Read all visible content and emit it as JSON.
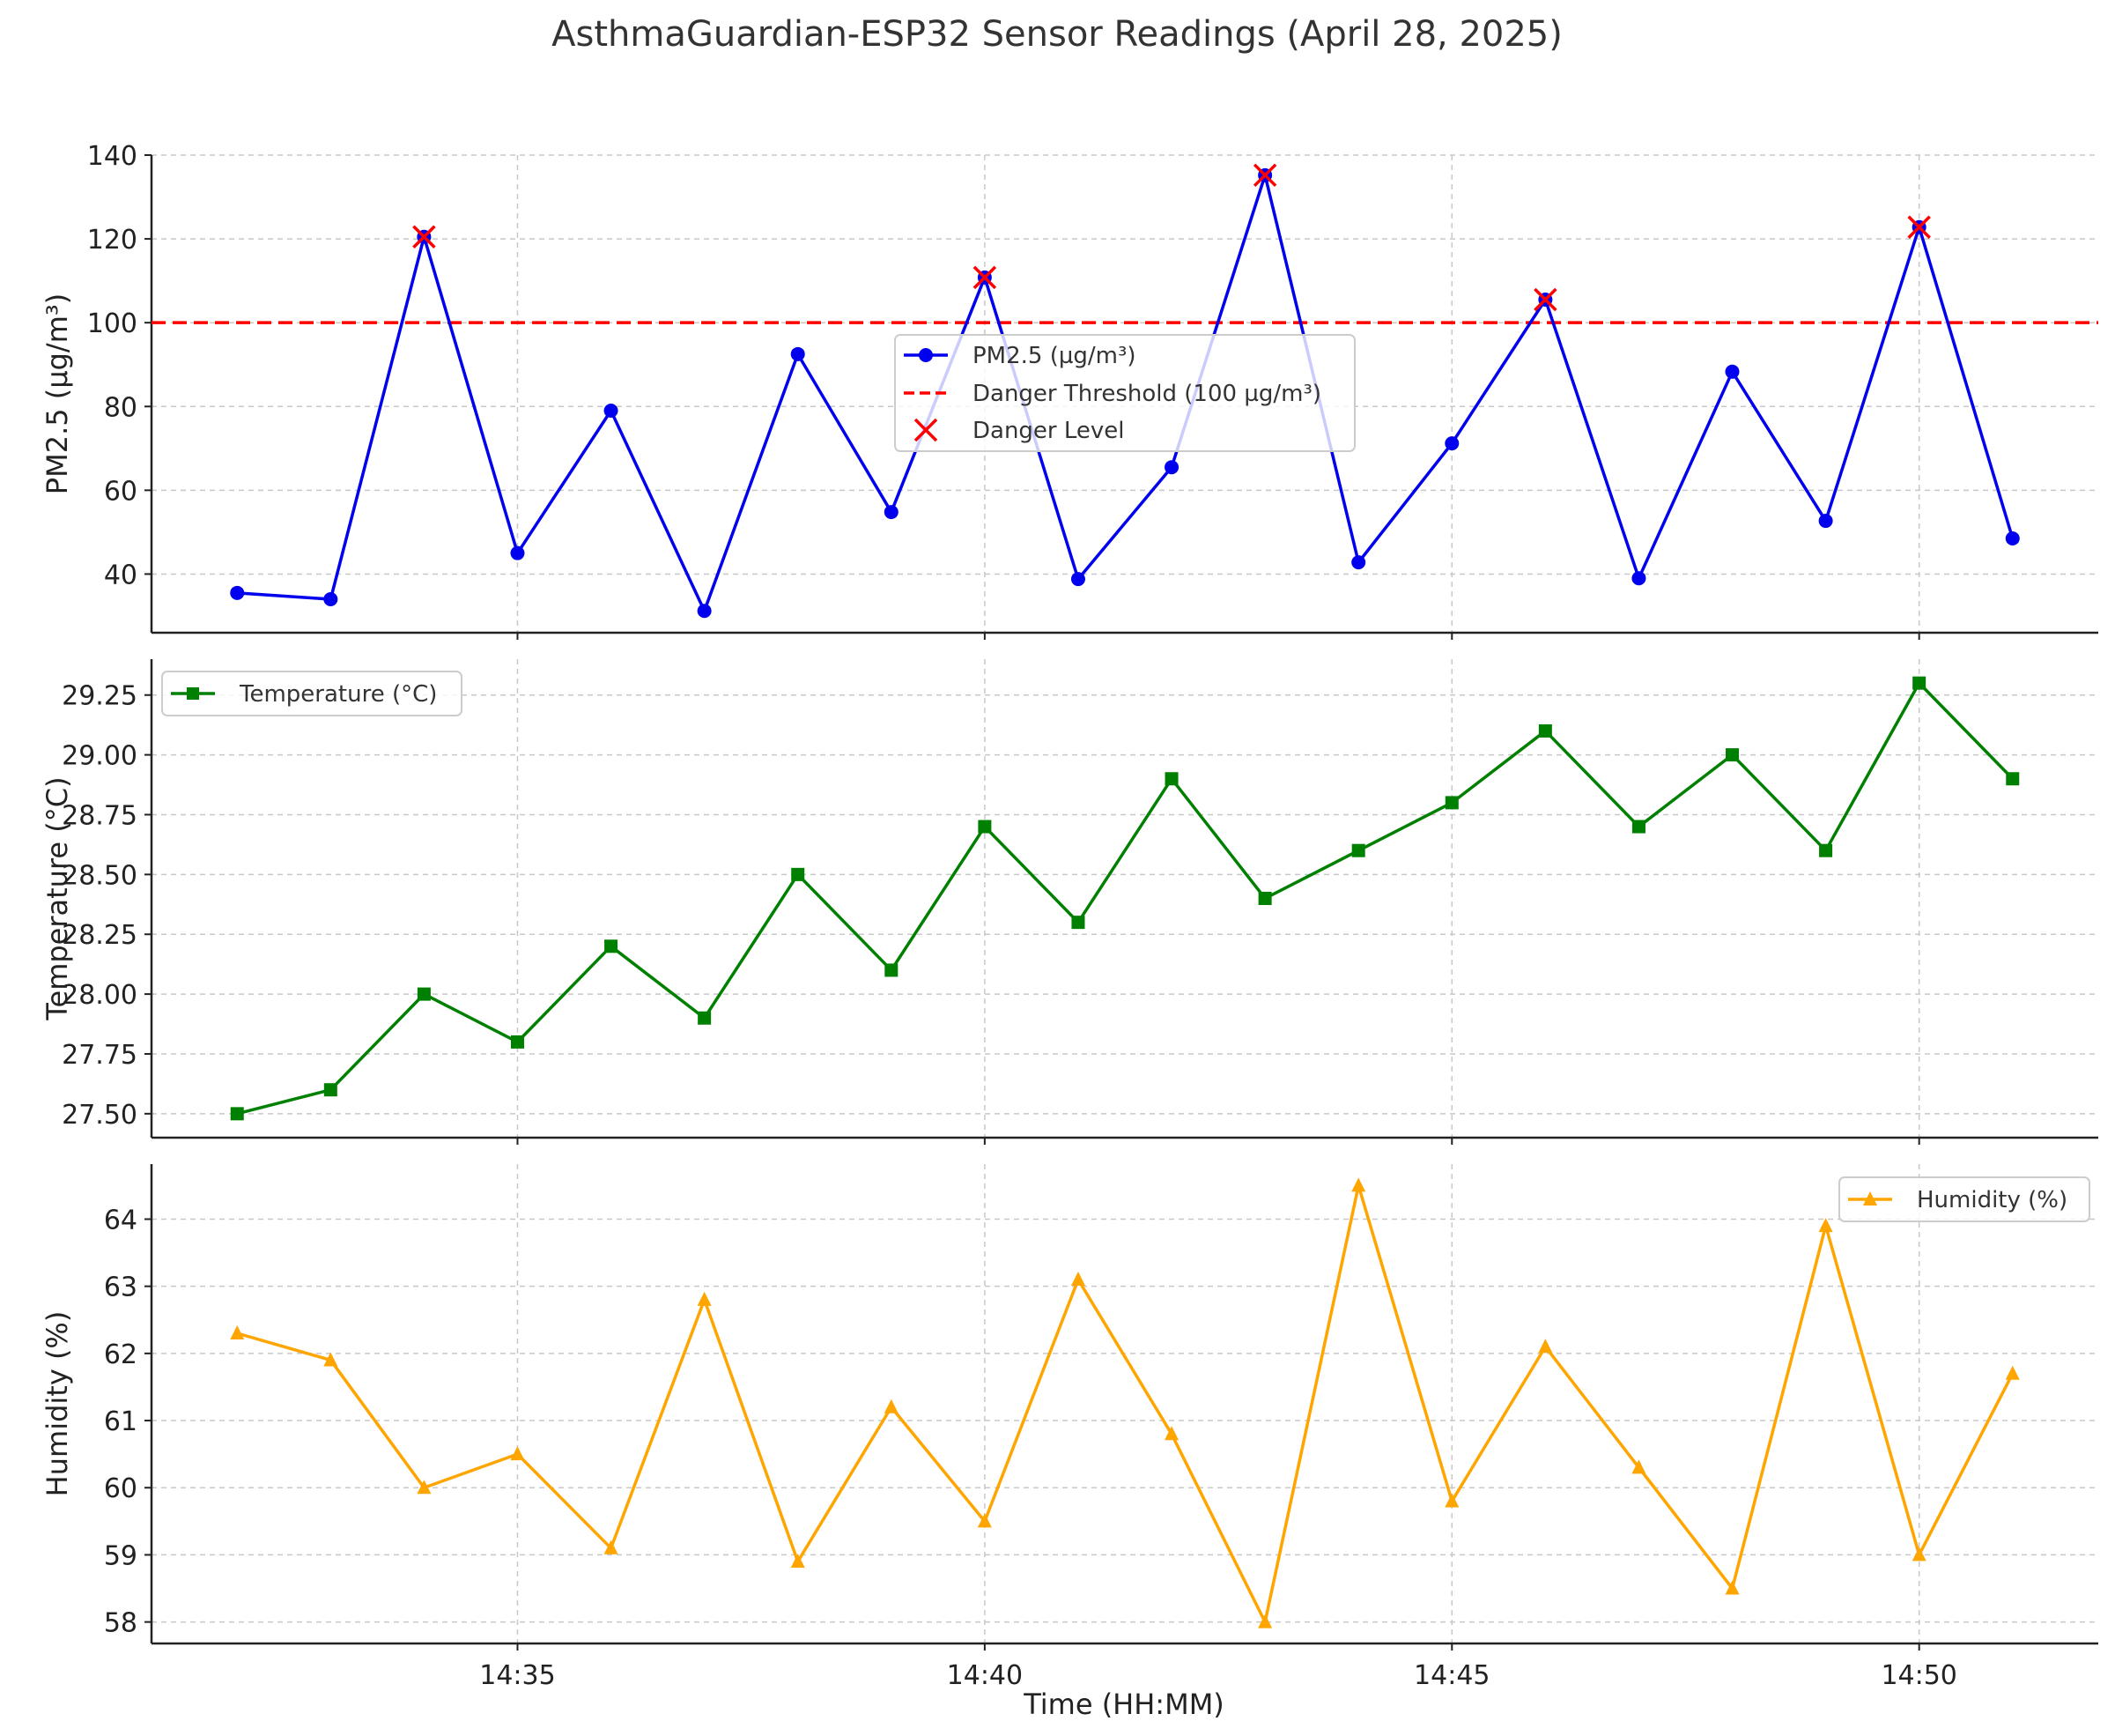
{
  "chart_data": {
    "title": "AsthmaGuardian-ESP32 Sensor Readings (April 28, 2025)",
    "x": [
      "14:32",
      "14:33",
      "14:34",
      "14:35",
      "14:36",
      "14:37",
      "14:38",
      "14:39",
      "14:40",
      "14:41",
      "14:42",
      "14:43",
      "14:44",
      "14:45",
      "14:46",
      "14:47",
      "14:48",
      "14:49",
      "14:50",
      "14:51"
    ],
    "xlabel": "Time (HH:MM)",
    "xticks": [
      "14:35",
      "14:40",
      "14:45",
      "14:50"
    ],
    "xlim": [
      "14:31:05",
      "14:51:55"
    ],
    "subplots": [
      {
        "type": "line",
        "ylabel": "PM2.5 (µg/m³)",
        "ylim": [
          26,
          140
        ],
        "yticks": [
          40,
          60,
          80,
          100,
          120,
          140
        ],
        "grid": true,
        "legend_position": "center",
        "series": [
          {
            "name": "PM2.5 (µg/m³)",
            "color": "#0000ee",
            "marker": "circle",
            "values": [
              35.5,
              34,
              120.5,
              45,
              79,
              31.2,
              92.5,
              54.8,
              110.8,
              38.8,
              65.5,
              135.2,
              42.8,
              71.2,
              105.5,
              39.0,
              88.3,
              52.7,
              122.8,
              48.5
            ]
          }
        ],
        "threshold": {
          "name": "Danger Threshold (100 µg/m³)",
          "value": 100,
          "color": "#ff0000"
        },
        "danger_points": {
          "name": "Danger Level",
          "color": "#ff0000",
          "x": [
            "14:34",
            "14:40",
            "14:43",
            "14:46",
            "14:50"
          ],
          "values": [
            120.5,
            110.8,
            135.2,
            105.5,
            122.8
          ]
        }
      },
      {
        "type": "line",
        "ylabel": "Temperature (°C)",
        "ylim": [
          27.4,
          29.4
        ],
        "yticks": [
          "27.50",
          "27.75",
          "28.00",
          "28.25",
          "28.50",
          "28.75",
          "29.00",
          "29.25"
        ],
        "grid": true,
        "legend_position": "upper left",
        "series": [
          {
            "name": "Temperature (°C)",
            "color": "#008000",
            "marker": "square",
            "values": [
              27.5,
              27.6,
              28.0,
              27.8,
              28.2,
              27.9,
              28.5,
              28.1,
              28.7,
              28.3,
              28.9,
              28.4,
              28.6,
              28.8,
              29.1,
              28.7,
              29.0,
              28.6,
              29.3,
              28.9
            ]
          }
        ]
      },
      {
        "type": "line",
        "ylabel": "Humidity (%)",
        "ylim": [
          57.68,
          64.82
        ],
        "yticks": [
          58,
          59,
          60,
          61,
          62,
          63,
          64
        ],
        "grid": true,
        "legend_position": "upper right",
        "series": [
          {
            "name": "Humidity (%)",
            "color": "#ffa500",
            "marker": "triangle",
            "values": [
              62.3,
              61.9,
              60.0,
              60.5,
              59.1,
              62.8,
              58.9,
              61.2,
              59.5,
              63.1,
              60.8,
              58.0,
              64.5,
              59.8,
              62.1,
              60.3,
              58.5,
              63.9,
              59.0,
              61.7
            ]
          }
        ]
      }
    ]
  }
}
